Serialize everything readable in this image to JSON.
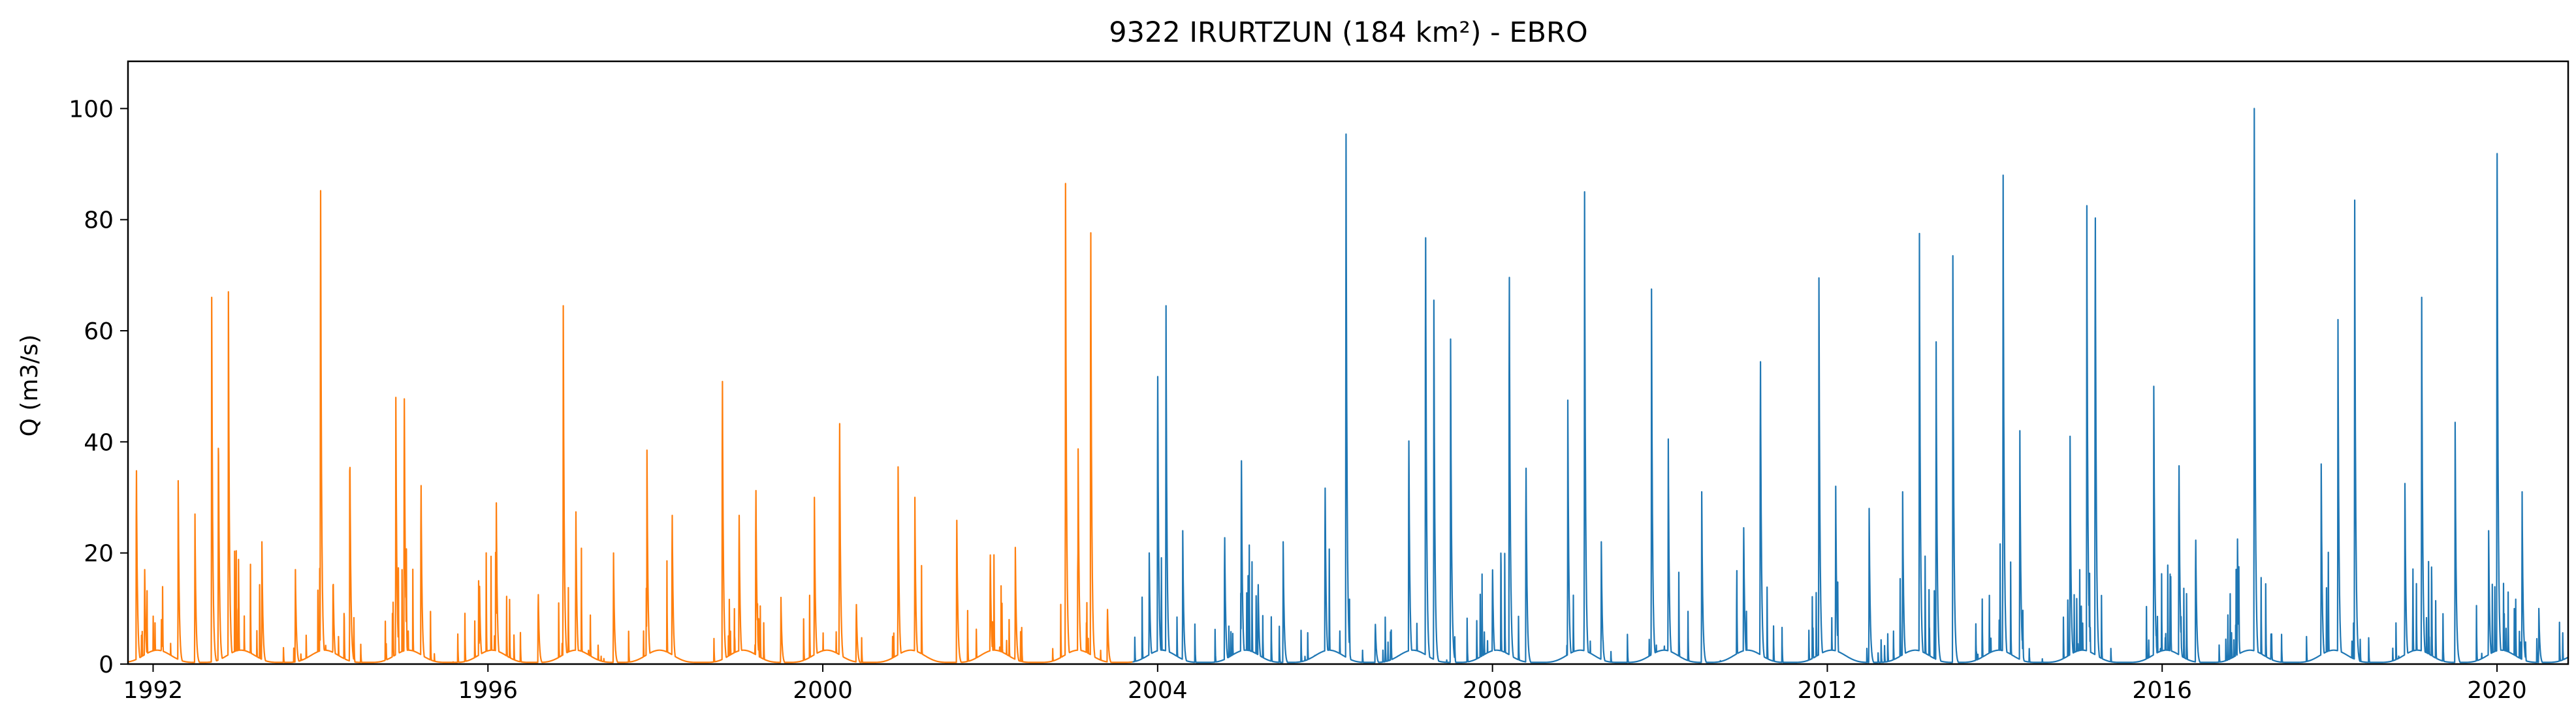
{
  "chart_data": {
    "type": "line",
    "title": "9322 IRURTZUN (184 km²) - EBRO",
    "ylabel": "Q (m3/s)",
    "xlabel": "",
    "xlim": [
      1991.7,
      2020.85
    ],
    "ylim": [
      0,
      108.5
    ],
    "x_ticks": [
      1992,
      1996,
      2000,
      2004,
      2008,
      2012,
      2016,
      2020
    ],
    "x_tick_labels": [
      "1992",
      "1996",
      "2000",
      "2004",
      "2008",
      "2012",
      "2016",
      "2020"
    ],
    "y_ticks": [
      0,
      20,
      40,
      60,
      80,
      100
    ],
    "y_tick_labels": [
      "0",
      "20",
      "40",
      "60",
      "80",
      "100"
    ],
    "grid": false,
    "legend": "none",
    "series": [
      {
        "color": "#ff7f0e",
        "x_range": [
          1991.7,
          2003.7
        ],
        "peaks": [
          [
            1991.8,
            39
          ],
          [
            1991.9,
            17
          ],
          [
            1992.1,
            8
          ],
          [
            1992.3,
            33
          ],
          [
            1992.5,
            27
          ],
          [
            1992.7,
            66
          ],
          [
            1992.78,
            45
          ],
          [
            1992.9,
            67
          ],
          [
            1993.3,
            22
          ],
          [
            1993.7,
            17
          ],
          [
            1994.0,
            95.5
          ],
          [
            1994.15,
            17
          ],
          [
            1994.35,
            42
          ],
          [
            1994.9,
            48
          ],
          [
            1995.0,
            53.5
          ],
          [
            1995.2,
            36
          ],
          [
            1995.9,
            14
          ],
          [
            1996.1,
            29
          ],
          [
            1996.6,
            14
          ],
          [
            1996.9,
            64.5
          ],
          [
            1997.05,
            29
          ],
          [
            1997.5,
            20
          ],
          [
            1997.9,
            38.5
          ],
          [
            1998.2,
            30
          ],
          [
            1998.8,
            57
          ],
          [
            1999.0,
            30
          ],
          [
            1999.2,
            35
          ],
          [
            1999.5,
            12
          ],
          [
            1999.9,
            30
          ],
          [
            2000.2,
            48.5
          ],
          [
            2000.4,
            12
          ],
          [
            2000.9,
            35.5
          ],
          [
            2001.1,
            30
          ],
          [
            2001.6,
            29
          ],
          [
            2002.0,
            22
          ],
          [
            2002.3,
            21
          ],
          [
            2002.9,
            86.5
          ],
          [
            2003.05,
            41
          ],
          [
            2003.2,
            87
          ],
          [
            2003.4,
            11
          ]
        ]
      },
      {
        "color": "#1f77b4",
        "x_range": [
          2003.7,
          2020.85
        ],
        "peaks": [
          [
            2003.9,
            20
          ],
          [
            2004.0,
            58
          ],
          [
            2004.1,
            64.5
          ],
          [
            2004.3,
            24
          ],
          [
            2004.8,
            25.5
          ],
          [
            2005.0,
            41
          ],
          [
            2005.2,
            16
          ],
          [
            2005.5,
            22
          ],
          [
            2006.0,
            35.5
          ],
          [
            2006.25,
            101
          ],
          [
            2006.6,
            8
          ],
          [
            2007.0,
            45
          ],
          [
            2007.2,
            86
          ],
          [
            2007.3,
            65.5
          ],
          [
            2007.5,
            58.5
          ],
          [
            2008.0,
            19
          ],
          [
            2008.2,
            78
          ],
          [
            2008.4,
            39.5
          ],
          [
            2008.9,
            47.5
          ],
          [
            2009.1,
            85
          ],
          [
            2009.3,
            22
          ],
          [
            2009.9,
            67.5
          ],
          [
            2010.1,
            40.5
          ],
          [
            2010.5,
            31
          ],
          [
            2011.0,
            27.5
          ],
          [
            2011.2,
            61
          ],
          [
            2011.9,
            69.5
          ],
          [
            2012.1,
            32
          ],
          [
            2012.5,
            28
          ],
          [
            2012.9,
            31
          ],
          [
            2013.1,
            77.5
          ],
          [
            2013.3,
            58
          ],
          [
            2013.5,
            73.5
          ],
          [
            2014.1,
            88
          ],
          [
            2014.3,
            42
          ],
          [
            2014.9,
            41
          ],
          [
            2015.1,
            82.5
          ],
          [
            2015.2,
            90
          ],
          [
            2015.9,
            50
          ],
          [
            2016.2,
            40
          ],
          [
            2016.4,
            25
          ],
          [
            2016.9,
            22.5
          ],
          [
            2017.1,
            100
          ],
          [
            2017.9,
            36
          ],
          [
            2018.1,
            62
          ],
          [
            2018.3,
            83.5
          ],
          [
            2018.9,
            32.5
          ],
          [
            2019.1,
            66
          ],
          [
            2019.5,
            43.5
          ],
          [
            2019.9,
            24
          ],
          [
            2020.0,
            103
          ],
          [
            2020.3,
            31
          ],
          [
            2020.5,
            10
          ]
        ]
      }
    ]
  }
}
